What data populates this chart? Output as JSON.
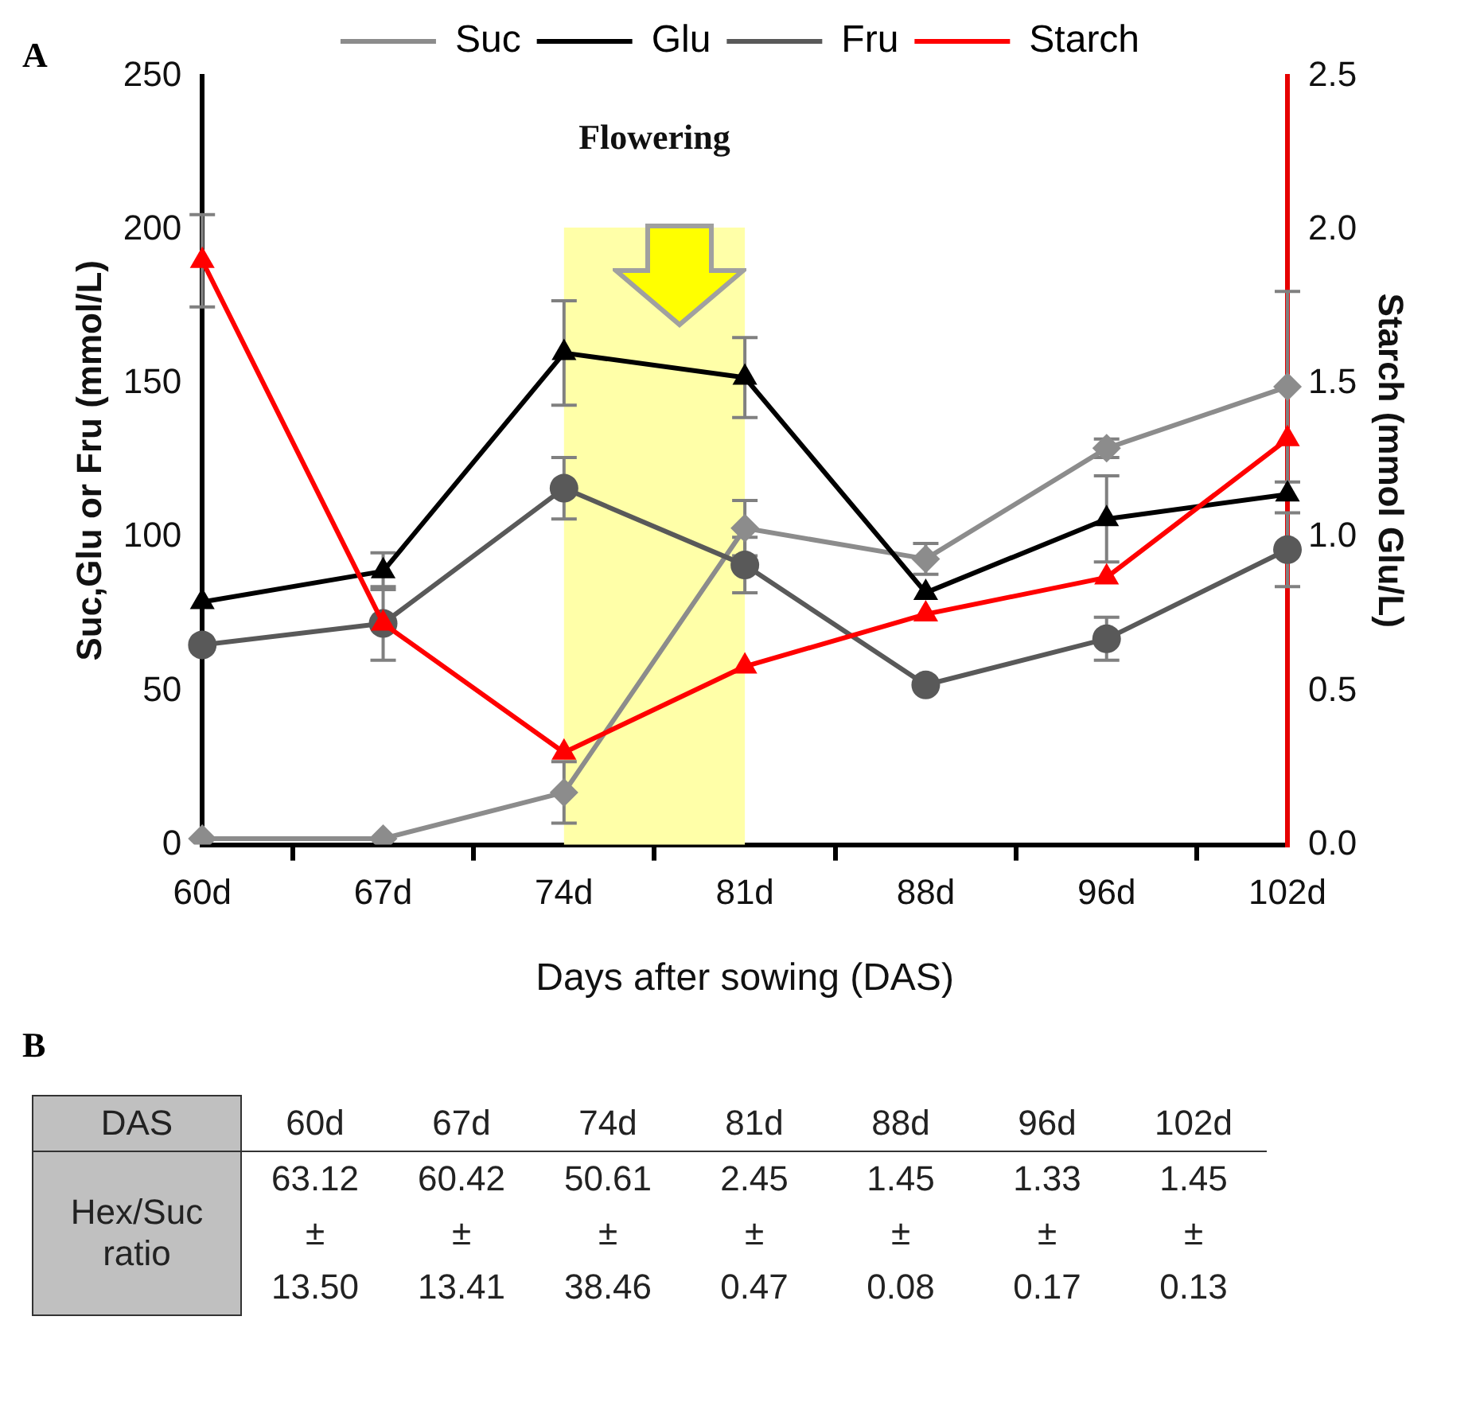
{
  "chart_data": [
    {
      "type": "line",
      "title": "A",
      "xlabel": "Days after sowing (DAS)",
      "ylabel": "Suc,Glu or Fru (mmol/L)",
      "y2label": "Starch (mmol Glu/L)",
      "categories": [
        "60d",
        "67d",
        "74d",
        "81d",
        "88d",
        "96d",
        "102d"
      ],
      "series": [
        {
          "name": "Suc",
          "color": "#8c8c8c",
          "marker": "diamond",
          "values": [
            2,
            2,
            17,
            103,
            93,
            129,
            149
          ],
          "errors": [
            null,
            null,
            10,
            9,
            5,
            3,
            31
          ]
        },
        {
          "name": "Glu",
          "color": "#000000",
          "marker": "triangle",
          "values": [
            79,
            89,
            160,
            152,
            82,
            106,
            114
          ],
          "errors": [
            null,
            6,
            17,
            13,
            null,
            14,
            null
          ]
        },
        {
          "name": "Fru",
          "color": "#595959",
          "marker": "circle",
          "values": [
            65,
            72,
            116,
            91,
            52,
            67,
            96
          ],
          "errors": [
            null,
            12,
            10,
            9,
            null,
            7,
            12
          ]
        },
        {
          "name": "Starch",
          "color": "#ff0000",
          "marker": "triangle",
          "axis": "y2",
          "values": [
            1.9,
            0.72,
            0.3,
            0.58,
            0.75,
            0.87,
            1.32
          ],
          "errors": [
            0.15,
            null,
            null,
            null,
            null,
            null,
            null
          ]
        }
      ],
      "ylim": [
        0,
        250
      ],
      "yticks": [
        0,
        50,
        100,
        150,
        200,
        250
      ],
      "y2lim": [
        0,
        2.5
      ],
      "y2ticks": [
        {
          "value": 0,
          "label": "0.0"
        },
        {
          "value": 0.5,
          "label": "0.5"
        },
        {
          "value": 1,
          "label": "1.0"
        },
        {
          "value": 1.5,
          "label": "1.5"
        },
        {
          "value": 2,
          "label": "2.0"
        },
        {
          "value": 2.5,
          "label": "2.5"
        }
      ],
      "bands": [
        {
          "axis": "x",
          "from": "74d",
          "to": "81d",
          "label": "Flowering",
          "color": "#ffffa8"
        }
      ],
      "grid": false,
      "legend": "top",
      "line_style": "solid"
    },
    {
      "type": "other",
      "title": "B",
      "xlabel": "DAS",
      "ylabel": "Hex/Suc ratio",
      "categories": [
        "60d",
        "67d",
        "74d",
        "81d",
        "88d",
        "96d",
        "102d"
      ],
      "value_labels": [
        "63.12 ± 13.50",
        "60.42 ± 13.41",
        "50.61 ± 38.46",
        "2.45 ± 0.47",
        "1.45 ± 0.08",
        "1.33 ± 0.17",
        "1.45 ± 0.13"
      ]
    }
  ]
}
